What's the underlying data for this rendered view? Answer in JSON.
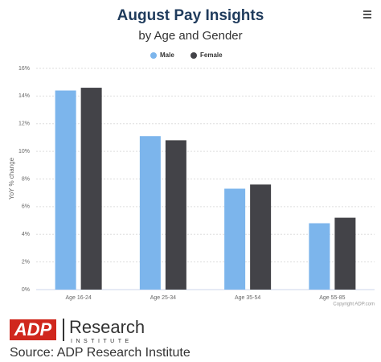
{
  "chart_data": {
    "type": "bar",
    "title": "August Pay Insights",
    "subtitle": "by Age and Gender",
    "y_label": "YoY % change",
    "categories": [
      "Age 16-24",
      "Age 25-34",
      "Age 35-54",
      "Age 55-85"
    ],
    "series": [
      {
        "name": "Male",
        "color": "#7cb5ec",
        "values": [
          14.4,
          11.1,
          7.3,
          4.8
        ]
      },
      {
        "name": "Female",
        "color": "#434348",
        "values": [
          14.6,
          10.8,
          7.6,
          5.2
        ]
      }
    ],
    "ylim": [
      0,
      16
    ],
    "yticks": [
      {
        "value": 0,
        "label": "0%"
      },
      {
        "value": 2,
        "label": "2%"
      },
      {
        "value": 4,
        "label": "4%"
      },
      {
        "value": 6,
        "label": "6%"
      },
      {
        "value": 8,
        "label": "8%"
      },
      {
        "value": 10,
        "label": "10%"
      },
      {
        "value": 12,
        "label": "12%"
      },
      {
        "value": 14,
        "label": "14%"
      },
      {
        "value": 16,
        "label": "16%"
      }
    ],
    "grid": true,
    "legend": "top",
    "credit": "Copyright ADP.com"
  },
  "footer": {
    "logo": "ADP",
    "brand": "Research",
    "brand_sub": "INSTITUTE",
    "source": "Source: ADP Research Institute"
  }
}
